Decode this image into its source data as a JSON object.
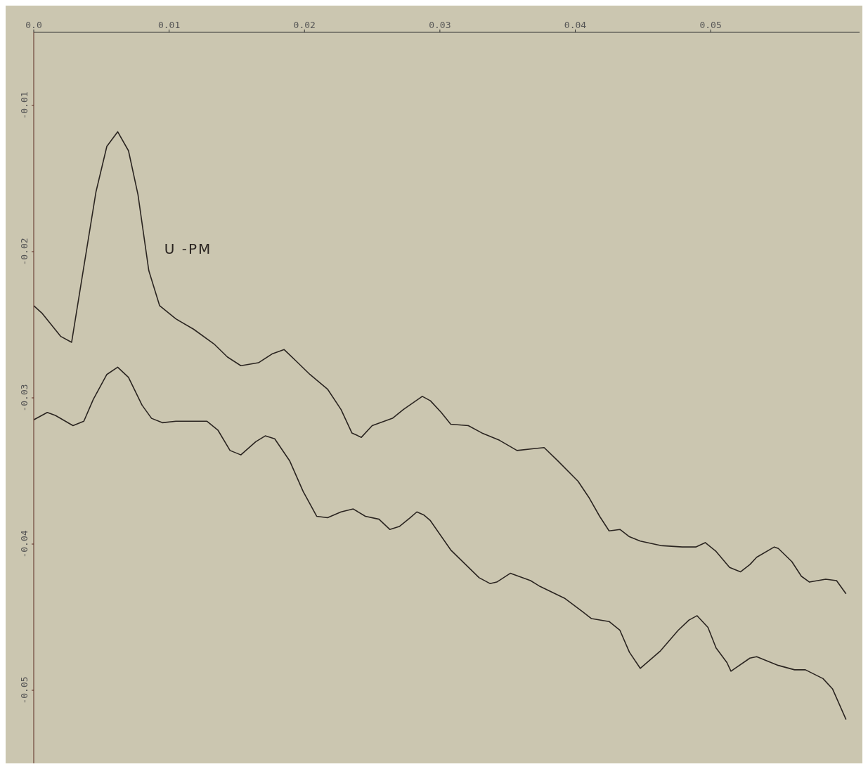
{
  "chart_data": {
    "type": "line",
    "xlim": [
      0,
      0.061
    ],
    "ylim": [
      -0.055,
      -0.005
    ],
    "xticks": [
      {
        "value": 0,
        "label": "0.0"
      },
      0.01,
      0.02,
      0.03,
      0.04,
      0.05
    ],
    "yticks": [
      -0.01,
      -0.02,
      -0.03,
      -0.04,
      -0.05
    ],
    "grid": false,
    "legend": false,
    "marker": "none",
    "line_style": "solid",
    "series": [
      {
        "name": "U -PM",
        "color": "#2a2420",
        "x": [
          0,
          0.0006,
          0.002,
          0.0028,
          0.0036,
          0.0046,
          0.0054,
          0.0062,
          0.007,
          0.0077,
          0.0085,
          0.0093,
          0.0105,
          0.0118,
          0.0133,
          0.0143,
          0.0153,
          0.0166,
          0.0176,
          0.0185,
          0.0194,
          0.0204,
          0.0217,
          0.0227,
          0.0235,
          0.0242,
          0.025,
          0.0265,
          0.0273,
          0.0287,
          0.0293,
          0.0301,
          0.0308,
          0.0321,
          0.0331,
          0.0344,
          0.0357,
          0.0377,
          0.0387,
          0.0402,
          0.041,
          0.0418,
          0.0425,
          0.0433,
          0.044,
          0.0448,
          0.0463,
          0.0479,
          0.0489,
          0.0496,
          0.0504,
          0.0514,
          0.0522,
          0.0529,
          0.0534,
          0.0547,
          0.055,
          0.056,
          0.0567,
          0.0573,
          0.0585,
          0.0593,
          0.06
        ],
        "values": [
          -0.0237,
          -0.0242,
          -0.0258,
          -0.0262,
          -0.0216,
          -0.0159,
          -0.0128,
          -0.0118,
          -0.0131,
          -0.0161,
          -0.0213,
          -0.0237,
          -0.0246,
          -0.0253,
          -0.0263,
          -0.0272,
          -0.0278,
          -0.0276,
          -0.027,
          -0.0267,
          -0.0275,
          -0.0284,
          -0.0294,
          -0.0308,
          -0.0324,
          -0.0327,
          -0.0319,
          -0.0314,
          -0.0308,
          -0.0299,
          -0.0302,
          -0.031,
          -0.0318,
          -0.0319,
          -0.0324,
          -0.0329,
          -0.0336,
          -0.0334,
          -0.0343,
          -0.0357,
          -0.0368,
          -0.0381,
          -0.0391,
          -0.039,
          -0.0395,
          -0.0398,
          -0.0401,
          -0.0402,
          -0.0402,
          -0.0399,
          -0.0405,
          -0.0416,
          -0.0419,
          -0.0414,
          -0.0409,
          -0.0402,
          -0.0403,
          -0.0412,
          -0.0422,
          -0.0426,
          -0.0424,
          -0.0425,
          -0.0434
        ]
      },
      {
        "color": "#2a2420",
        "x": [
          0,
          0.001,
          0.0016,
          0.0029,
          0.0037,
          0.0044,
          0.0054,
          0.0062,
          0.007,
          0.008,
          0.0087,
          0.0095,
          0.0105,
          0.0118,
          0.0128,
          0.0136,
          0.0145,
          0.0153,
          0.0164,
          0.0171,
          0.0178,
          0.0189,
          0.0199,
          0.0209,
          0.0217,
          0.0227,
          0.0236,
          0.0245,
          0.0255,
          0.0263,
          0.027,
          0.0278,
          0.0283,
          0.0288,
          0.0293,
          0.0308,
          0.0329,
          0.0337,
          0.0342,
          0.0352,
          0.0367,
          0.0374,
          0.0392,
          0.0405,
          0.0412,
          0.0425,
          0.0433,
          0.044,
          0.0448,
          0.0463,
          0.0476,
          0.0484,
          0.049,
          0.0498,
          0.0504,
          0.0512,
          0.0515,
          0.0518,
          0.0529,
          0.0534,
          0.055,
          0.0562,
          0.057,
          0.0583,
          0.059,
          0.06
        ],
        "values": [
          -0.0315,
          -0.031,
          -0.0312,
          -0.0319,
          -0.0316,
          -0.0301,
          -0.0284,
          -0.0279,
          -0.0286,
          -0.0305,
          -0.0314,
          -0.0317,
          -0.0316,
          -0.0316,
          -0.0316,
          -0.0322,
          -0.0336,
          -0.0339,
          -0.033,
          -0.0326,
          -0.0328,
          -0.0343,
          -0.0364,
          -0.0381,
          -0.0382,
          -0.0378,
          -0.0376,
          -0.0381,
          -0.0383,
          -0.039,
          -0.0388,
          -0.0382,
          -0.0378,
          -0.038,
          -0.0384,
          -0.0404,
          -0.0423,
          -0.0427,
          -0.0426,
          -0.042,
          -0.0425,
          -0.0429,
          -0.0437,
          -0.0446,
          -0.0451,
          -0.0453,
          -0.0459,
          -0.0474,
          -0.0485,
          -0.0473,
          -0.0459,
          -0.0452,
          -0.0449,
          -0.0457,
          -0.0471,
          -0.0481,
          -0.0487,
          -0.0485,
          -0.0478,
          -0.0477,
          -0.0483,
          -0.0486,
          -0.0486,
          -0.0492,
          -0.0499,
          -0.052
        ]
      }
    ]
  }
}
